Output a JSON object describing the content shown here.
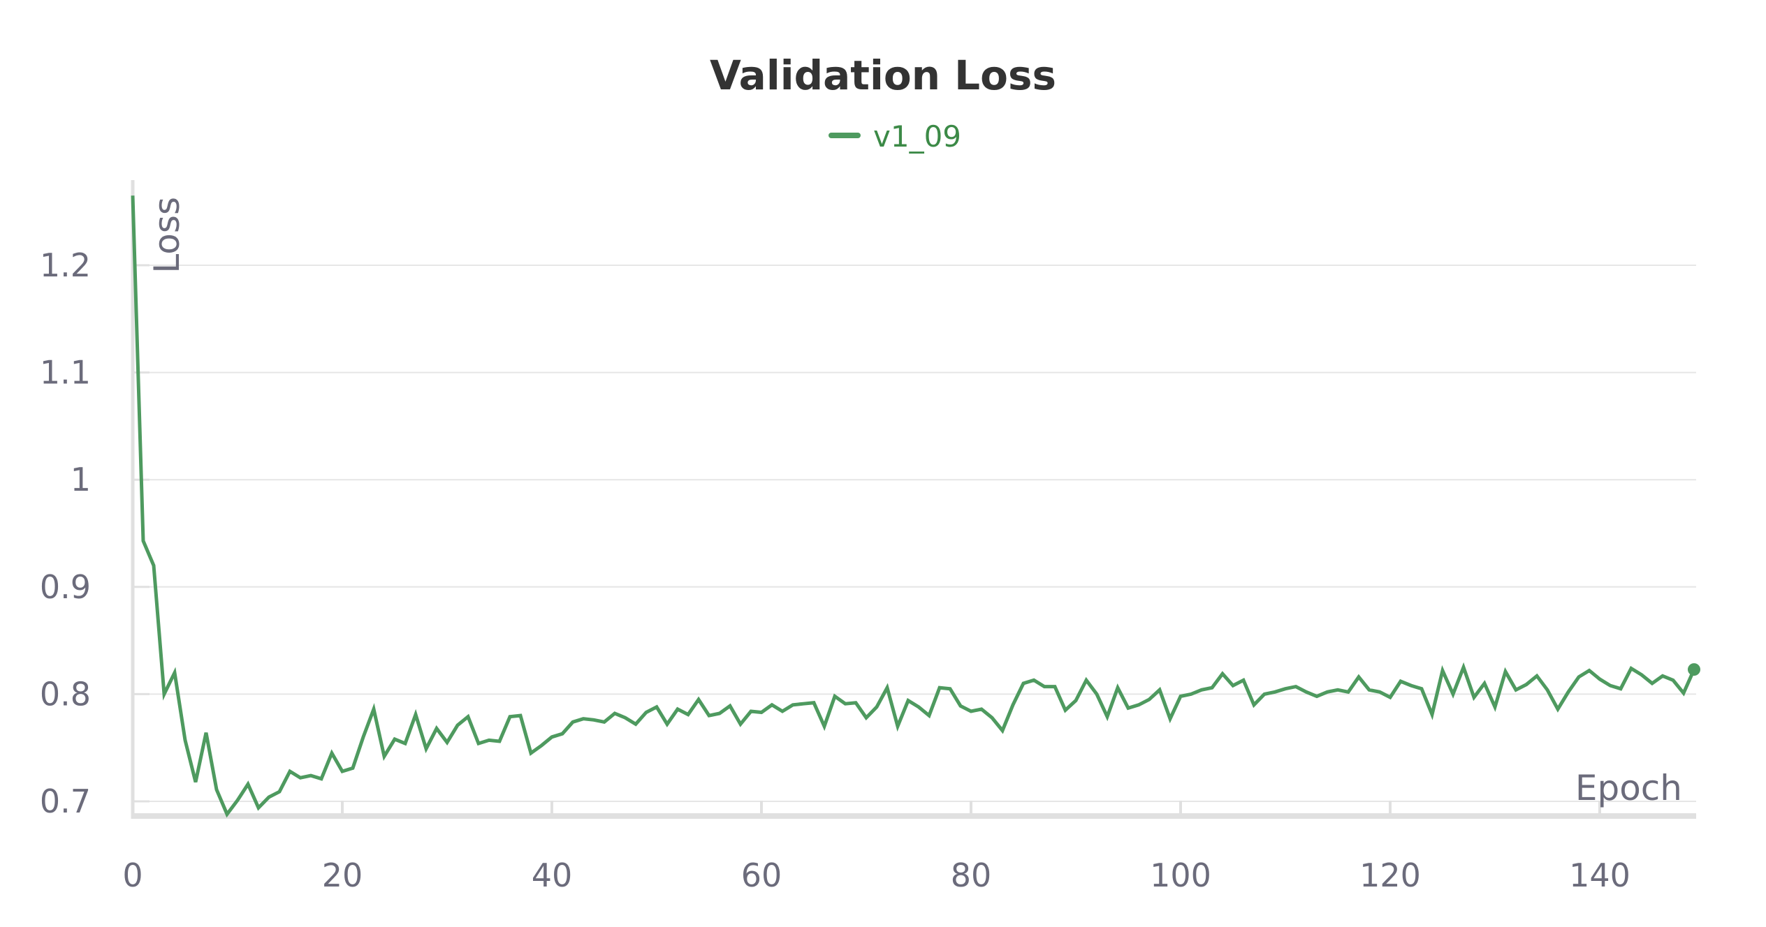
{
  "chart_data": {
    "type": "line",
    "title": "Validation Loss",
    "xlabel": "Epoch",
    "ylabel": "Loss",
    "xlim": [
      0,
      149
    ],
    "ylim": [
      0.686,
      1.3
    ],
    "x_ticks": [
      0,
      20,
      40,
      60,
      80,
      100,
      120,
      140
    ],
    "y_ticks": [
      0.7,
      0.8,
      0.9,
      1,
      1.1,
      1.2
    ],
    "y_tick_labels": [
      "0.7",
      "0.8",
      "0.9",
      "1",
      "1.1",
      "1.2"
    ],
    "grid": "horizontal",
    "legend": "top-center",
    "colors": {
      "series": "#4e9a5f",
      "legend_text": "#3c8a47",
      "title": "#333333",
      "tick_text": "#6b6b7b",
      "grid": "#e6e6e6",
      "axis": "#e0e0e0"
    },
    "series": [
      {
        "name": "v1_09",
        "x": [
          0,
          1,
          2,
          3,
          4,
          5,
          6,
          7,
          8,
          9,
          10,
          11,
          12,
          13,
          14,
          15,
          16,
          17,
          18,
          19,
          20,
          21,
          22,
          23,
          24,
          25,
          26,
          27,
          28,
          29,
          30,
          31,
          32,
          33,
          34,
          35,
          36,
          37,
          38,
          39,
          40,
          41,
          42,
          43,
          44,
          45,
          46,
          47,
          48,
          49,
          50,
          51,
          52,
          53,
          54,
          55,
          56,
          57,
          58,
          59,
          60,
          61,
          62,
          63,
          64,
          65,
          66,
          67,
          68,
          69,
          70,
          71,
          72,
          73,
          74,
          75,
          76,
          77,
          78,
          79,
          80,
          81,
          82,
          83,
          84,
          85,
          86,
          87,
          88,
          89,
          90,
          91,
          92,
          93,
          94,
          95,
          96,
          97,
          98,
          99,
          100,
          101,
          102,
          103,
          104,
          105,
          106,
          107,
          108,
          109,
          110,
          111,
          112,
          113,
          114,
          115,
          116,
          117,
          118,
          119,
          120,
          121,
          122,
          123,
          124,
          125,
          126,
          127,
          128,
          129,
          130,
          131,
          132,
          133,
          134,
          135,
          136,
          137,
          138,
          139,
          140,
          141,
          142,
          143,
          144,
          145,
          146,
          147,
          148,
          149
        ],
        "y": [
          1.265,
          0.943,
          0.92,
          0.8,
          0.82,
          0.757,
          0.718,
          0.764,
          0.711,
          0.688,
          0.701,
          0.716,
          0.694,
          0.704,
          0.709,
          0.728,
          0.722,
          0.724,
          0.721,
          0.745,
          0.728,
          0.731,
          0.76,
          0.786,
          0.742,
          0.758,
          0.754,
          0.781,
          0.749,
          0.768,
          0.755,
          0.771,
          0.779,
          0.754,
          0.757,
          0.756,
          0.779,
          0.78,
          0.745,
          0.752,
          0.76,
          0.763,
          0.774,
          0.777,
          0.776,
          0.774,
          0.782,
          0.778,
          0.772,
          0.783,
          0.788,
          0.772,
          0.786,
          0.781,
          0.795,
          0.78,
          0.782,
          0.789,
          0.772,
          0.784,
          0.783,
          0.79,
          0.784,
          0.79,
          0.791,
          0.792,
          0.77,
          0.798,
          0.791,
          0.792,
          0.778,
          0.788,
          0.806,
          0.77,
          0.794,
          0.788,
          0.78,
          0.806,
          0.805,
          0.789,
          0.784,
          0.786,
          0.778,
          0.766,
          0.79,
          0.81,
          0.813,
          0.807,
          0.807,
          0.785,
          0.794,
          0.813,
          0.8,
          0.779,
          0.806,
          0.787,
          0.79,
          0.795,
          0.804,
          0.777,
          0.798,
          0.8,
          0.804,
          0.806,
          0.819,
          0.808,
          0.813,
          0.79,
          0.8,
          0.802,
          0.805,
          0.807,
          0.802,
          0.798,
          0.802,
          0.804,
          0.802,
          0.816,
          0.804,
          0.802,
          0.797,
          0.812,
          0.808,
          0.805,
          0.781,
          0.822,
          0.8,
          0.825,
          0.797,
          0.81,
          0.788,
          0.821,
          0.804,
          0.809,
          0.817,
          0.804,
          0.786,
          0.802,
          0.816,
          0.822,
          0.814,
          0.808,
          0.805,
          0.824,
          0.818,
          0.81,
          0.817,
          0.813,
          0.801,
          0.823
        ]
      }
    ]
  }
}
